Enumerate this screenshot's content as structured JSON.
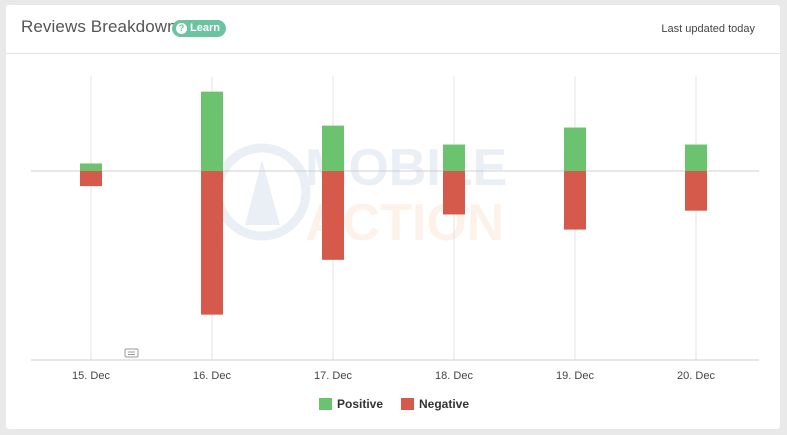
{
  "header": {
    "title": "Reviews Breakdown",
    "learn_label": "Learn",
    "learn_icon": "question-icon",
    "updated": "Last updated today"
  },
  "watermark": {
    "line1": "MOBILE",
    "line2": "ACTION"
  },
  "colors": {
    "positive": "#6cc36f",
    "negative": "#d65a4b",
    "grid": "#e3e3e3"
  },
  "chart_data": {
    "type": "bar",
    "stacked": "diverging",
    "categories": [
      "15. Dec",
      "16. Dec",
      "17. Dec",
      "18. Dec",
      "19. Dec",
      "20. Dec"
    ],
    "series": [
      {
        "name": "Positive",
        "values": [
          4,
          42,
          24,
          14,
          23,
          14
        ]
      },
      {
        "name": "Negative",
        "values": [
          -8,
          -76,
          -47,
          -23,
          -31,
          -21
        ]
      }
    ],
    "ylim": [
      -100,
      50
    ],
    "grid": true,
    "legend": "bottom-center"
  }
}
